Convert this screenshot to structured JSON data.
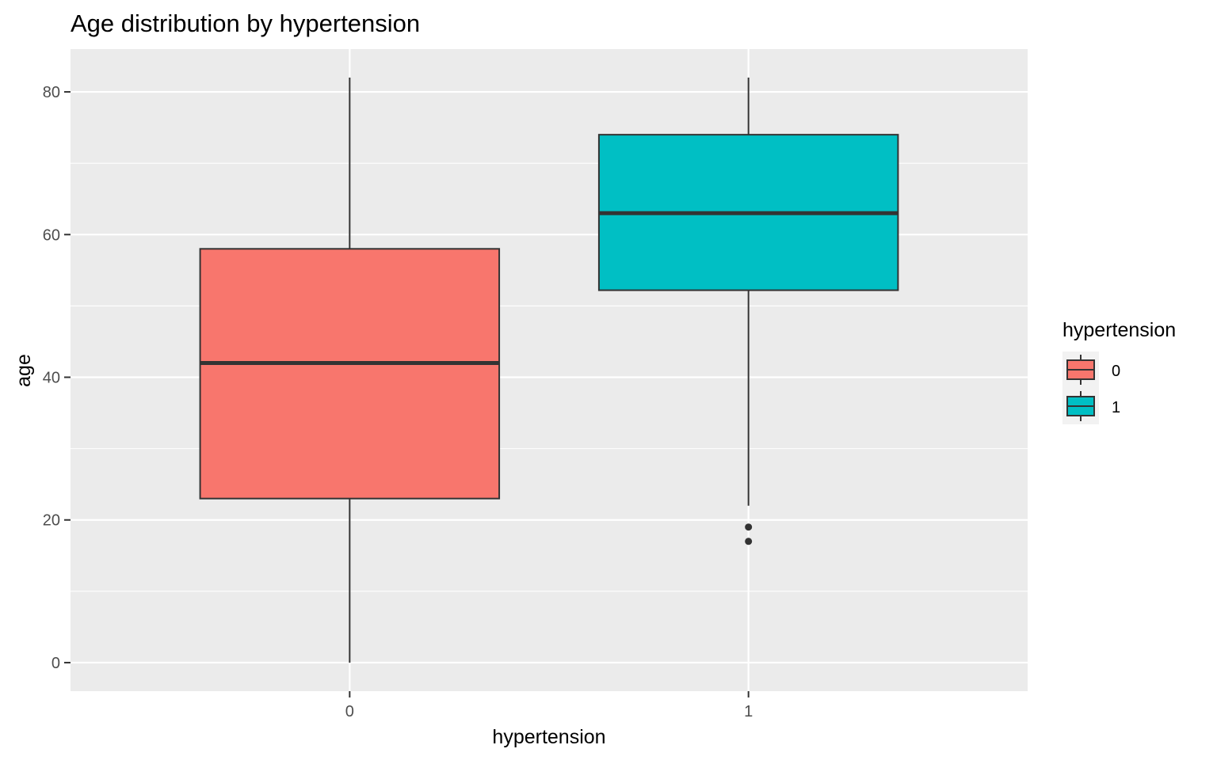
{
  "chart_data": {
    "type": "boxplot",
    "title": "Age distribution by hypertension",
    "xlabel": "hypertension",
    "ylabel": "age",
    "categories": [
      "0",
      "1"
    ],
    "yticks": [
      0,
      20,
      40,
      60,
      80
    ],
    "ylim": [
      -4,
      86
    ],
    "grid": true,
    "legend": {
      "title": "hypertension",
      "placement": "right",
      "entries": [
        "0",
        "1"
      ]
    },
    "boxes": [
      {
        "category": "0",
        "whisker_low": 0,
        "q1": 23,
        "median": 42,
        "q3": 58,
        "whisker_high": 82,
        "outliers": [],
        "color": "#F8766D"
      },
      {
        "category": "1",
        "whisker_low": 22,
        "q1": 52.2,
        "median": 63,
        "q3": 74,
        "whisker_high": 82,
        "outliers": [
          19,
          17
        ],
        "color": "#00BFC4"
      }
    ],
    "panel_color": "#EBEBEB",
    "grid_color": "#FFFFFF",
    "line_color": "#333333"
  }
}
